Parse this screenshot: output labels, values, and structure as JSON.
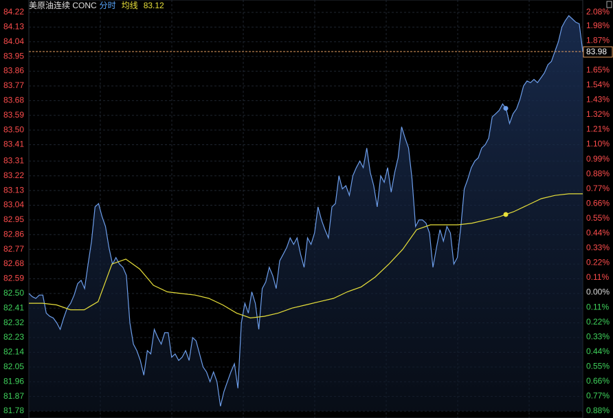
{
  "chart_data": {
    "type": "line",
    "title": "美原油连续 CONC",
    "ylim": [
      81.78,
      84.22
    ],
    "yticks": [
      84.22,
      84.13,
      84.04,
      83.95,
      83.86,
      83.77,
      83.68,
      83.59,
      {
        "value": 83.5,
        "label": "83.50"
      },
      83.41,
      83.31,
      83.22,
      83.13,
      83.04,
      82.95,
      82.86,
      82.77,
      82.68,
      82.59,
      {
        "value": 82.5,
        "label": "82.50"
      },
      82.41,
      82.32,
      82.23,
      82.14,
      82.05,
      81.96,
      81.87,
      81.78
    ],
    "y2lim": [
      -0.88,
      2.08
    ],
    "y2ticks": [
      {
        "value": 2.08,
        "label": "2.08%"
      },
      {
        "value": 1.98,
        "label": "1.98%"
      },
      {
        "value": 1.87,
        "label": "1.87%"
      },
      {
        "value": 1.65,
        "label": "1.65%"
      },
      {
        "value": 1.54,
        "label": "1.54%"
      },
      {
        "value": 1.43,
        "label": "1.43%"
      },
      {
        "value": 1.32,
        "label": "1.32%"
      },
      {
        "value": 1.21,
        "label": "1.21%"
      },
      {
        "value": 1.1,
        "label": "1.10%"
      },
      {
        "value": 0.99,
        "label": "0.99%"
      },
      {
        "value": 0.88,
        "label": "0.88%"
      },
      {
        "value": 0.77,
        "label": "0.77%"
      },
      {
        "value": 0.66,
        "label": "0.66%"
      },
      {
        "value": 0.55,
        "label": "0.55%"
      },
      {
        "value": 0.44,
        "label": "0.44%"
      },
      {
        "value": 0.33,
        "label": "0.33%"
      },
      {
        "value": 0.22,
        "label": "0.22%"
      },
      {
        "value": 0.11,
        "label": "0.11%"
      },
      {
        "value": 0,
        "label": "0.00%"
      },
      {
        "value": -0.11,
        "label": "0.11%"
      },
      {
        "value": -0.22,
        "label": "0.22%"
      },
      {
        "value": -0.33,
        "label": "0.33%"
      },
      {
        "value": -0.44,
        "label": "0.44%"
      },
      {
        "value": -0.55,
        "label": "0.55%"
      },
      {
        "value": -0.66,
        "label": "0.66%"
      },
      {
        "value": -0.77,
        "label": "0.77%"
      },
      {
        "value": -0.88,
        "label": "0.88%"
      }
    ],
    "grid": true,
    "series": [
      {
        "name": "分时",
        "color": "#6d9eeb",
        "latest": 83.98,
        "area": true,
        "values": [
          82.5,
          82.48,
          82.47,
          82.49,
          82.49,
          82.38,
          82.36,
          82.35,
          82.32,
          82.28,
          82.35,
          82.41,
          82.44,
          82.49,
          82.56,
          82.58,
          82.53,
          82.68,
          82.82,
          83.03,
          83.05,
          82.97,
          82.91,
          82.78,
          82.68,
          82.72,
          82.68,
          82.66,
          82.61,
          82.32,
          82.19,
          82.15,
          82.09,
          82.0,
          82.15,
          82.13,
          82.28,
          82.23,
          82.19,
          82.26,
          82.26,
          82.11,
          82.13,
          82.09,
          82.11,
          82.15,
          82.09,
          82.23,
          82.21,
          82.13,
          82.05,
          82.02,
          81.96,
          82.02,
          81.96,
          81.81,
          81.9,
          81.96,
          82.02,
          82.07,
          81.92,
          82.32,
          82.44,
          82.38,
          82.51,
          82.44,
          82.28,
          82.53,
          82.57,
          82.66,
          82.61,
          82.53,
          82.7,
          82.74,
          82.78,
          82.84,
          82.8,
          82.84,
          82.74,
          82.66,
          82.84,
          82.8,
          82.87,
          83.03,
          82.95,
          82.89,
          82.84,
          83.03,
          83.05,
          83.22,
          83.14,
          83.16,
          83.1,
          83.22,
          83.27,
          83.31,
          83.27,
          83.39,
          83.24,
          83.16,
          83.03,
          83.22,
          83.18,
          83.27,
          83.12,
          83.24,
          83.33,
          83.52,
          83.45,
          83.39,
          83.2,
          82.91,
          82.95,
          82.95,
          82.93,
          82.87,
          82.66,
          82.78,
          82.89,
          82.82,
          82.91,
          82.87,
          82.68,
          82.72,
          82.91,
          83.14,
          83.2,
          83.27,
          83.31,
          83.33,
          83.39,
          83.41,
          83.45,
          83.58,
          83.6,
          83.62,
          83.66,
          83.63,
          83.54,
          83.6,
          83.63,
          83.69,
          83.77,
          83.8,
          83.79,
          83.81,
          83.79,
          83.82,
          83.85,
          83.9,
          83.92,
          83.98,
          84.04,
          84.13,
          84.17,
          84.2,
          84.18,
          84.16,
          84.15,
          83.98
        ]
      },
      {
        "name": "均线",
        "color": "#e8e03a",
        "latest": 83.12,
        "values": [
          82.44,
          82.44,
          82.43,
          82.4,
          82.4,
          82.45,
          82.68,
          82.71,
          82.65,
          82.55,
          82.51,
          82.5,
          82.49,
          82.47,
          82.43,
          82.38,
          82.35,
          82.36,
          82.38,
          82.41,
          82.43,
          82.45,
          82.47,
          82.51,
          82.54,
          82.6,
          82.68,
          82.77,
          82.89,
          82.92,
          82.92,
          82.92,
          82.93,
          82.95,
          82.97,
          83.0,
          83.04,
          83.08,
          83.1,
          83.11,
          83.11
        ]
      }
    ]
  }
}
